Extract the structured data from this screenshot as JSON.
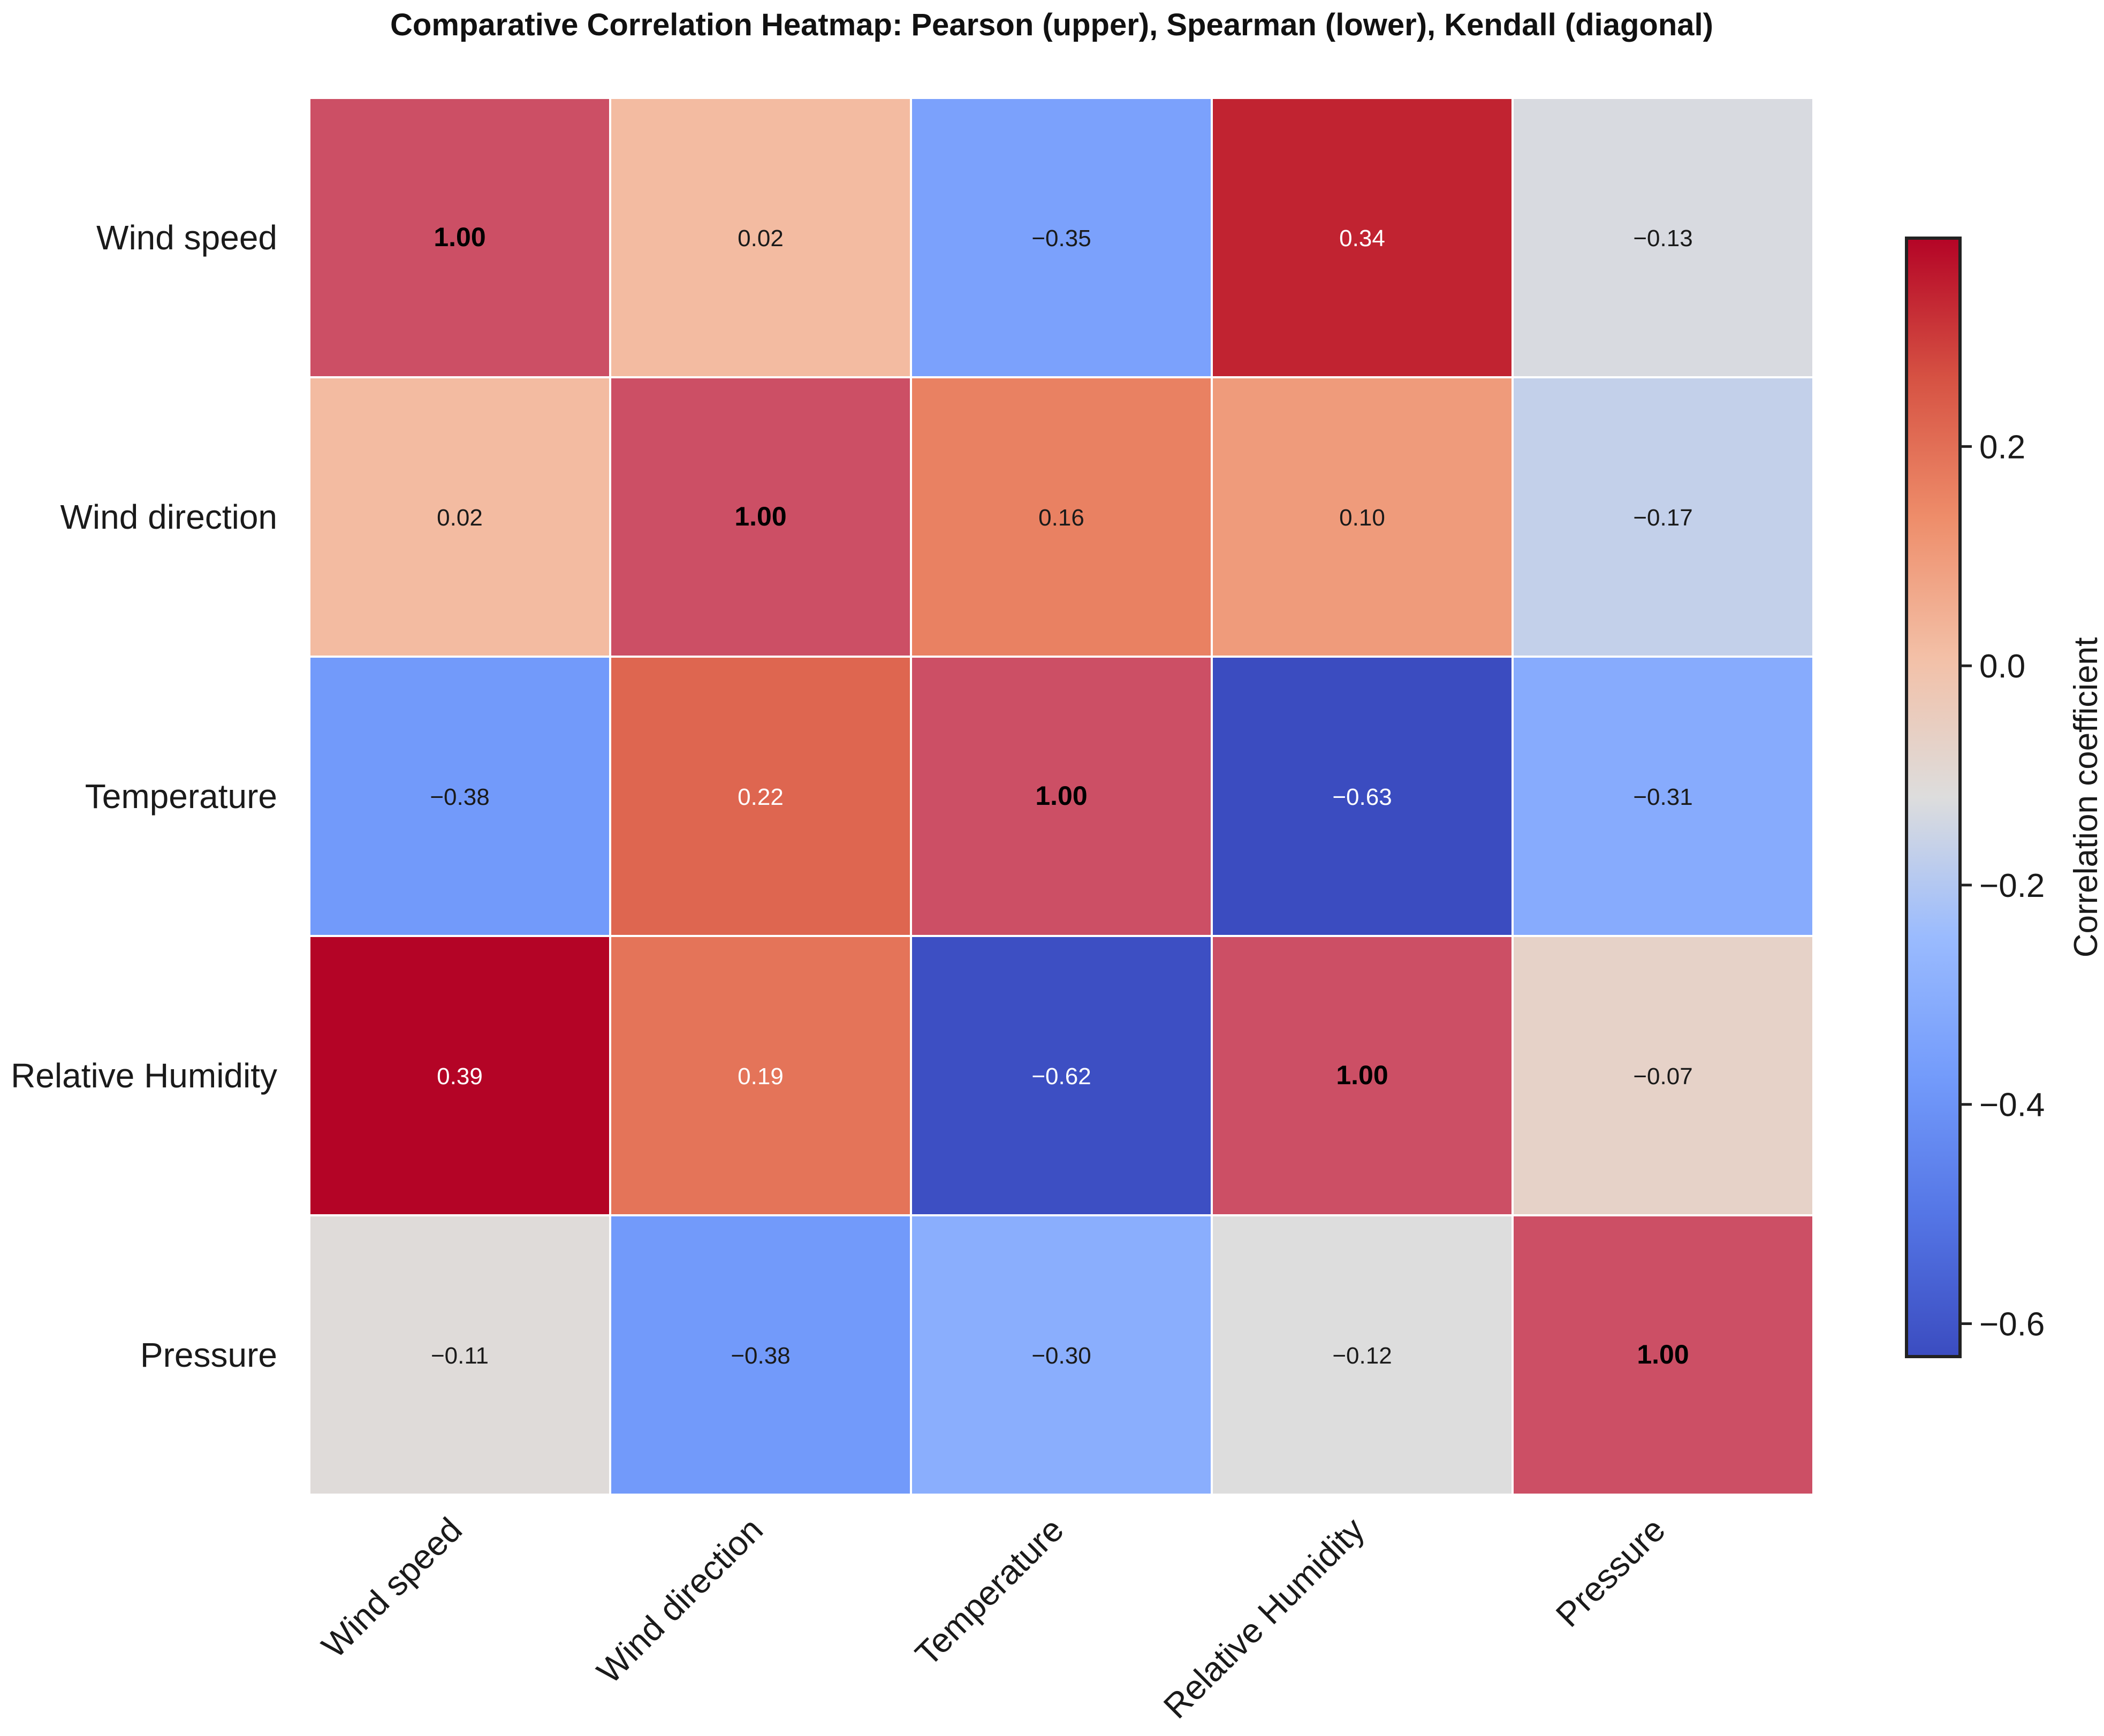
{
  "chart_data": {
    "type": "heatmap",
    "title": "Comparative Correlation Heatmap: Pearson (upper), Spearman (lower), Kendall (diagonal)",
    "row_labels": [
      "Wind speed",
      "Wind direction",
      "Temperature",
      "Relative Humidity",
      "Pressure"
    ],
    "col_labels": [
      "Wind speed",
      "Wind direction",
      "Temperature",
      "Relative Humidity",
      "Pressure"
    ],
    "values": [
      [
        1.0,
        0.02,
        -0.35,
        0.34,
        -0.13
      ],
      [
        0.02,
        1.0,
        0.16,
        0.1,
        -0.17
      ],
      [
        -0.38,
        0.22,
        1.0,
        -0.63,
        -0.31
      ],
      [
        0.39,
        0.19,
        -0.62,
        1.0,
        -0.07
      ],
      [
        -0.11,
        -0.38,
        -0.3,
        -0.12,
        1.0
      ]
    ],
    "display_labels": [
      [
        "1.00",
        "0.02",
        "−0.35",
        "0.34",
        "−0.13"
      ],
      [
        "0.02",
        "1.00",
        "0.16",
        "0.10",
        "−0.17"
      ],
      [
        "−0.38",
        "0.22",
        "1.00",
        "−0.63",
        "−0.31"
      ],
      [
        "0.39",
        "0.19",
        "−0.62",
        "1.00",
        "−0.07"
      ],
      [
        "−0.11",
        "−0.38",
        "−0.30",
        "−0.12",
        "1.00"
      ]
    ],
    "color_range": [
      -0.63,
      0.39
    ],
    "colormap": "coolwarm",
    "diagonal_color": "#cc4f65",
    "colorbar": {
      "label": "Correlation coefficient",
      "ticks": [
        0.2,
        0.0,
        -0.2,
        -0.4,
        -0.6
      ],
      "tick_labels": [
        "0.2",
        "0.0",
        "−0.2",
        "−0.4",
        "−0.6"
      ]
    }
  }
}
